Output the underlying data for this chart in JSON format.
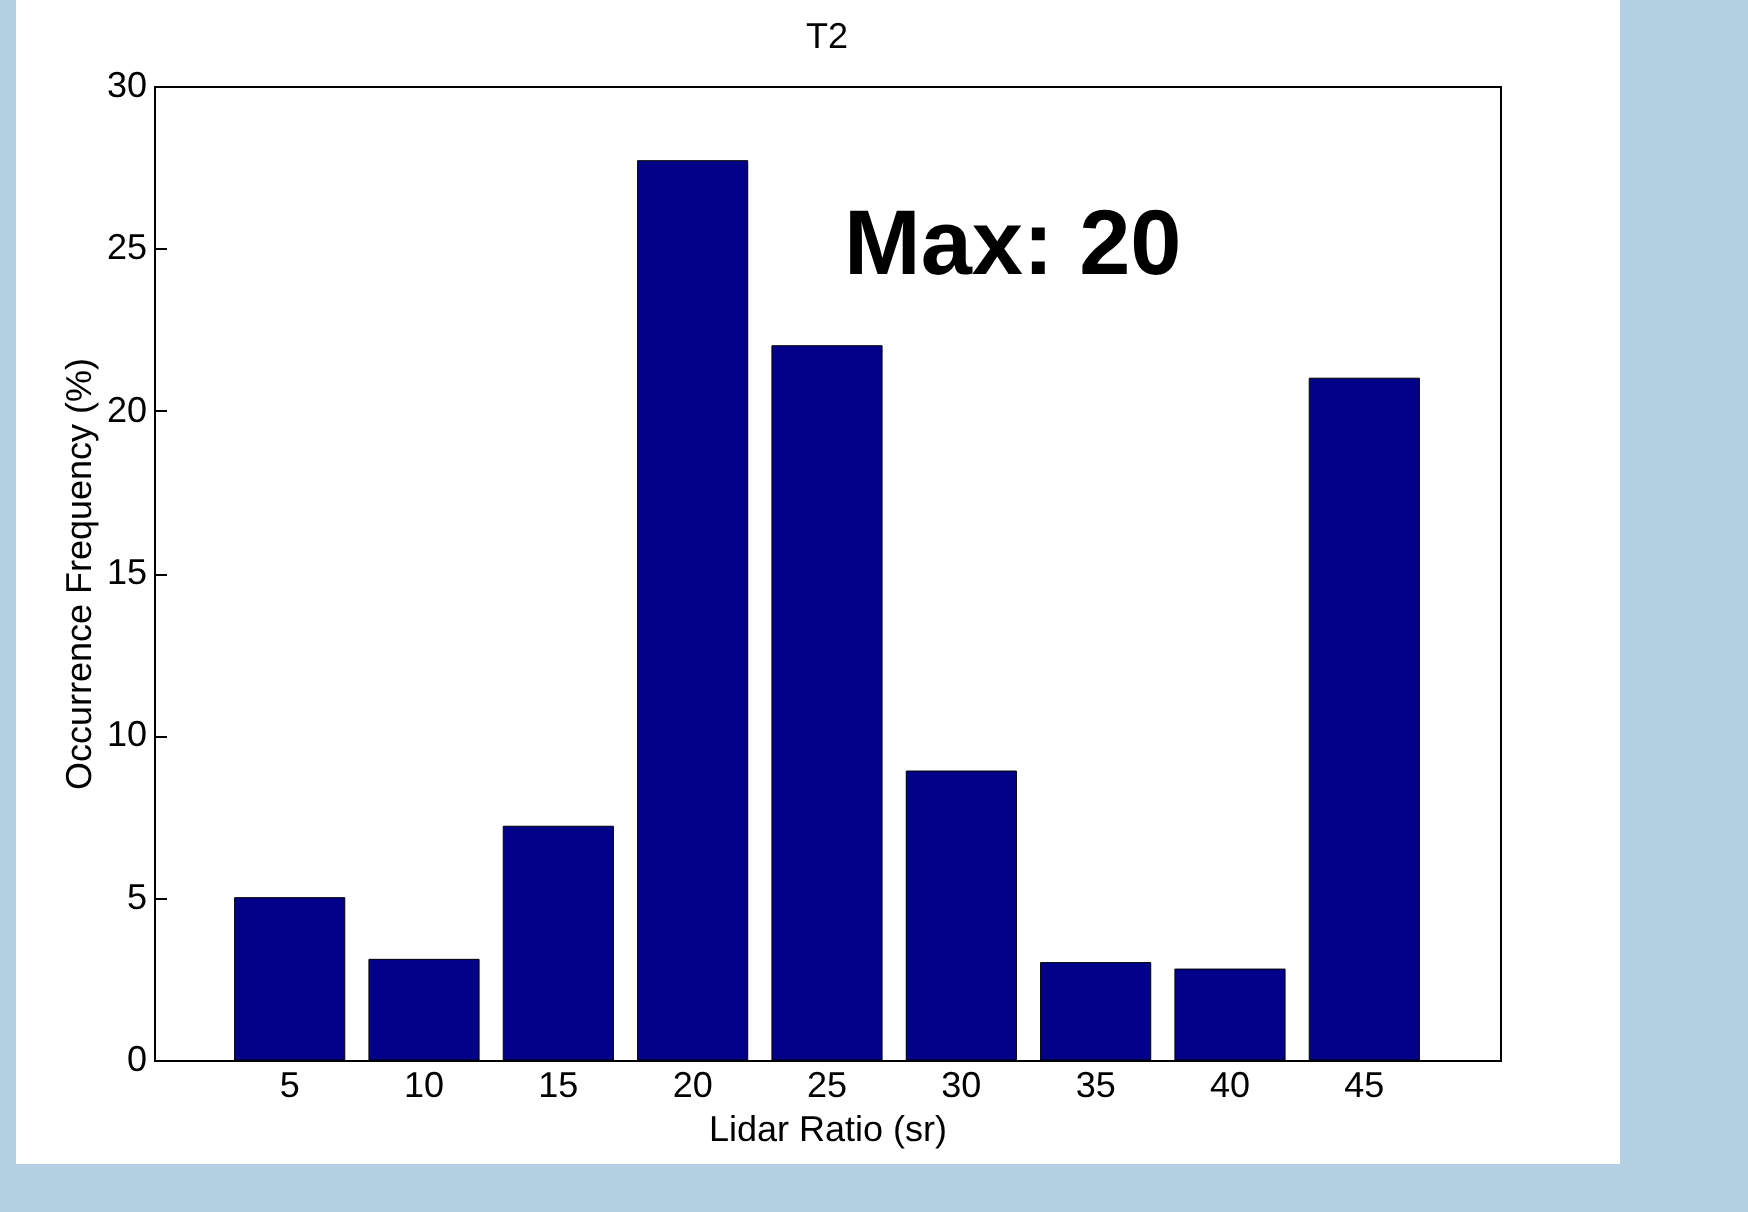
{
  "chart_data": {
    "type": "bar",
    "title": "T2",
    "xlabel": "Lidar Ratio (sr)",
    "ylabel": "Occurrence Frequency (%)",
    "categories": [
      "5",
      "10",
      "15",
      "20",
      "25",
      "30",
      "35",
      "40",
      "45"
    ],
    "values": [
      5.0,
      3.1,
      7.2,
      27.7,
      22.0,
      8.9,
      3.0,
      2.8,
      21.0
    ],
    "color": "#020288",
    "ylim": [
      0,
      30
    ],
    "yticks": [
      0,
      5,
      10,
      15,
      20,
      25,
      30
    ],
    "grid": false,
    "annotations": [
      "Max: 20"
    ]
  }
}
